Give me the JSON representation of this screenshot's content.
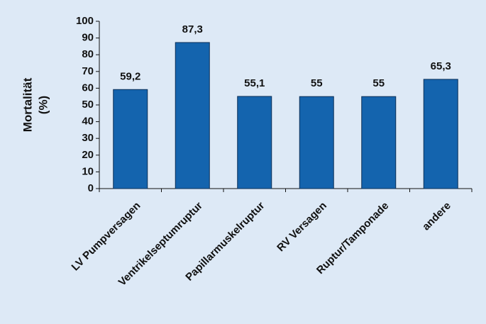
{
  "chart_data": {
    "type": "bar",
    "ylabel": [
      "Mortalität",
      "(%)"
    ],
    "categories": [
      "LV Pumpversagen",
      "Ventrikelseptumruptur",
      "Papillarmuskelruptur",
      "RV Versagen",
      "Ruptur/Tamponade",
      "andere"
    ],
    "values": [
      59.2,
      87.3,
      55.1,
      55,
      55,
      65.3
    ],
    "value_labels": [
      "59,2",
      "87,3",
      "55,1",
      "55",
      "55",
      "65,3"
    ],
    "color": "#1464ae",
    "ylim": [
      0,
      100
    ],
    "yticks": [
      0,
      10,
      20,
      30,
      40,
      50,
      60,
      70,
      80,
      90,
      100
    ]
  }
}
